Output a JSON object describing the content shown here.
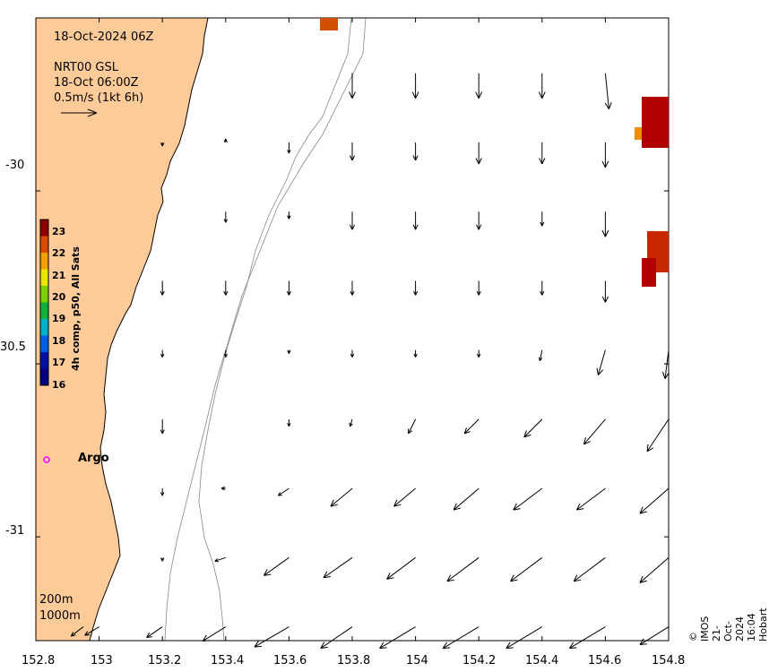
{
  "header": {
    "date": "18-Oct-2024 06Z",
    "product": "NRT00 GSL",
    "time": "18-Oct 06:00Z",
    "scale": "0.5m/s (1kt 6h)"
  },
  "colorbar": {
    "title": "4h comp, p50, All Sats",
    "labels": [
      "23",
      "22",
      "21",
      "20",
      "19",
      "18",
      "17",
      "16"
    ],
    "colors": [
      "#8b0000",
      "#d84a00",
      "#f0a000",
      "#e6e600",
      "#7ad000",
      "#10b040",
      "#00b0c8",
      "#0060e0",
      "#0010a0",
      "#000080"
    ]
  },
  "axes": {
    "x_ticks": [
      "152.8",
      "153",
      "153.2",
      "153.4",
      "153.6",
      "153.8",
      "154",
      "154.2",
      "154.4",
      "154.6",
      "154.8"
    ],
    "y_ticks": [
      "-30",
      "30.5",
      "-31"
    ]
  },
  "marker": {
    "label": "Argo",
    "color": "#ff00ff"
  },
  "contours": {
    "label_200": "200m",
    "label_1000": "1000m"
  },
  "credit": "© IMOS 21-Oct-2024 16:04 Hobart",
  "colors": {
    "land": "#ffcc99",
    "sst_hot": "#b00000",
    "sst_mid": "#d05000",
    "sst_warm": "#f09000"
  },
  "current_vectors": [
    {
      "lon": 152.95,
      "lat": -31.26,
      "u": -0.17,
      "v": -0.13
    },
    {
      "lon": 153.0,
      "lat": -31.26,
      "u": -0.2,
      "v": -0.12
    },
    {
      "lon": 153.2,
      "lat": -31.26,
      "u": -0.22,
      "v": -0.15
    },
    {
      "lon": 153.4,
      "lat": -31.26,
      "u": -0.32,
      "v": -0.2
    },
    {
      "lon": 153.6,
      "lat": -31.26,
      "u": -0.48,
      "v": -0.28
    },
    {
      "lon": 153.8,
      "lat": -31.26,
      "u": -0.44,
      "v": -0.3
    },
    {
      "lon": 154.0,
      "lat": -31.26,
      "u": -0.5,
      "v": -0.3
    },
    {
      "lon": 154.2,
      "lat": -31.26,
      "u": -0.5,
      "v": -0.3
    },
    {
      "lon": 154.4,
      "lat": -31.26,
      "u": -0.5,
      "v": -0.3
    },
    {
      "lon": 154.6,
      "lat": -31.26,
      "u": -0.5,
      "v": -0.3
    },
    {
      "lon": 154.8,
      "lat": -31.26,
      "u": -0.4,
      "v": -0.25
    },
    {
      "lon": 153.2,
      "lat": -31.06,
      "u": 0.0,
      "v": -0.05
    },
    {
      "lon": 153.4,
      "lat": -31.06,
      "u": -0.15,
      "v": -0.05
    },
    {
      "lon": 153.6,
      "lat": -31.06,
      "u": -0.35,
      "v": -0.25
    },
    {
      "lon": 153.8,
      "lat": -31.06,
      "u": -0.4,
      "v": -0.28
    },
    {
      "lon": 154.0,
      "lat": -31.06,
      "u": -0.4,
      "v": -0.3
    },
    {
      "lon": 154.2,
      "lat": -31.06,
      "u": -0.44,
      "v": -0.33
    },
    {
      "lon": 154.4,
      "lat": -31.06,
      "u": -0.44,
      "v": -0.33
    },
    {
      "lon": 154.6,
      "lat": -31.06,
      "u": -0.44,
      "v": -0.33
    },
    {
      "lon": 154.8,
      "lat": -31.06,
      "u": -0.4,
      "v": -0.35
    },
    {
      "lon": 153.2,
      "lat": -30.86,
      "u": 0.0,
      "v": -0.1
    },
    {
      "lon": 153.4,
      "lat": -30.86,
      "u": -0.06,
      "v": 0.0
    },
    {
      "lon": 153.6,
      "lat": -30.86,
      "u": -0.15,
      "v": -0.1
    },
    {
      "lon": 153.8,
      "lat": -30.86,
      "u": -0.3,
      "v": -0.25
    },
    {
      "lon": 154.0,
      "lat": -30.86,
      "u": -0.3,
      "v": -0.25
    },
    {
      "lon": 154.2,
      "lat": -30.86,
      "u": -0.35,
      "v": -0.3
    },
    {
      "lon": 154.4,
      "lat": -30.86,
      "u": -0.4,
      "v": -0.3
    },
    {
      "lon": 154.6,
      "lat": -30.86,
      "u": -0.4,
      "v": -0.3
    },
    {
      "lon": 154.8,
      "lat": -30.86,
      "u": -0.4,
      "v": -0.35
    },
    {
      "lon": 153.2,
      "lat": -30.66,
      "u": 0.0,
      "v": -0.2
    },
    {
      "lon": 153.6,
      "lat": -30.66,
      "u": 0.0,
      "v": -0.1
    },
    {
      "lon": 153.8,
      "lat": -30.66,
      "u": -0.03,
      "v": -0.1
    },
    {
      "lon": 154.0,
      "lat": -30.66,
      "u": -0.1,
      "v": -0.2
    },
    {
      "lon": 154.2,
      "lat": -30.66,
      "u": -0.2,
      "v": -0.2
    },
    {
      "lon": 154.4,
      "lat": -30.66,
      "u": -0.25,
      "v": -0.25
    },
    {
      "lon": 154.6,
      "lat": -30.66,
      "u": -0.3,
      "v": -0.35
    },
    {
      "lon": 154.8,
      "lat": -30.66,
      "u": -0.3,
      "v": -0.45
    },
    {
      "lon": 153.2,
      "lat": -30.46,
      "u": 0.0,
      "v": -0.1
    },
    {
      "lon": 153.4,
      "lat": -30.46,
      "u": 0.0,
      "v": -0.1
    },
    {
      "lon": 153.6,
      "lat": -30.46,
      "u": 0.0,
      "v": -0.05
    },
    {
      "lon": 153.8,
      "lat": -30.46,
      "u": 0.0,
      "v": -0.1
    },
    {
      "lon": 154.0,
      "lat": -30.46,
      "u": 0.0,
      "v": -0.1
    },
    {
      "lon": 154.2,
      "lat": -30.46,
      "u": 0.0,
      "v": -0.1
    },
    {
      "lon": 154.4,
      "lat": -30.46,
      "u": -0.03,
      "v": -0.15
    },
    {
      "lon": 154.6,
      "lat": -30.46,
      "u": -0.1,
      "v": -0.35
    },
    {
      "lon": 154.8,
      "lat": -30.46,
      "u": -0.05,
      "v": -0.4
    },
    {
      "lon": 153.2,
      "lat": -30.26,
      "u": 0.0,
      "v": -0.2
    },
    {
      "lon": 153.4,
      "lat": -30.26,
      "u": 0.0,
      "v": -0.2
    },
    {
      "lon": 153.6,
      "lat": -30.26,
      "u": 0.0,
      "v": -0.2
    },
    {
      "lon": 153.8,
      "lat": -30.26,
      "u": 0.0,
      "v": -0.2
    },
    {
      "lon": 154.0,
      "lat": -30.26,
      "u": 0.0,
      "v": -0.2
    },
    {
      "lon": 154.2,
      "lat": -30.26,
      "u": 0.0,
      "v": -0.2
    },
    {
      "lon": 154.4,
      "lat": -30.26,
      "u": 0.0,
      "v": -0.2
    },
    {
      "lon": 154.6,
      "lat": -30.26,
      "u": 0.0,
      "v": -0.3
    },
    {
      "lon": 153.4,
      "lat": -30.06,
      "u": 0.0,
      "v": -0.15
    },
    {
      "lon": 153.6,
      "lat": -30.06,
      "u": 0.0,
      "v": -0.1
    },
    {
      "lon": 153.8,
      "lat": -30.06,
      "u": 0.0,
      "v": -0.25
    },
    {
      "lon": 154.0,
      "lat": -30.06,
      "u": 0.0,
      "v": -0.25
    },
    {
      "lon": 154.2,
      "lat": -30.06,
      "u": 0.0,
      "v": -0.25
    },
    {
      "lon": 154.4,
      "lat": -30.06,
      "u": 0.0,
      "v": -0.2
    },
    {
      "lon": 154.6,
      "lat": -30.06,
      "u": 0.0,
      "v": -0.35
    },
    {
      "lon": 153.2,
      "lat": -29.86,
      "u": 0.0,
      "v": -0.05
    },
    {
      "lon": 153.4,
      "lat": -29.86,
      "u": 0.0,
      "v": 0.05
    },
    {
      "lon": 153.6,
      "lat": -29.86,
      "u": 0.0,
      "v": -0.15
    },
    {
      "lon": 153.8,
      "lat": -29.86,
      "u": 0.0,
      "v": -0.25
    },
    {
      "lon": 154.0,
      "lat": -29.86,
      "u": 0.0,
      "v": -0.25
    },
    {
      "lon": 154.2,
      "lat": -29.86,
      "u": 0.0,
      "v": -0.3
    },
    {
      "lon": 154.4,
      "lat": -29.86,
      "u": 0.0,
      "v": -0.3
    },
    {
      "lon": 154.6,
      "lat": -29.86,
      "u": 0.0,
      "v": -0.35
    },
    {
      "lon": 153.8,
      "lat": -29.66,
      "u": 0.0,
      "v": -0.35
    },
    {
      "lon": 154.0,
      "lat": -29.66,
      "u": 0.0,
      "v": -0.35
    },
    {
      "lon": 154.2,
      "lat": -29.66,
      "u": 0.0,
      "v": -0.35
    },
    {
      "lon": 154.4,
      "lat": -29.66,
      "u": 0.0,
      "v": -0.35
    },
    {
      "lon": 154.6,
      "lat": -29.66,
      "u": 0.05,
      "v": -0.5
    }
  ]
}
